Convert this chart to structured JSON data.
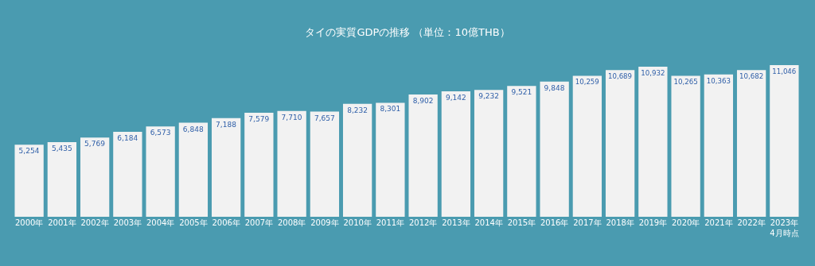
{
  "chart_data": {
    "type": "bar",
    "title": "タイの実質GDPの推移 （単位：10億THB）",
    "categories": [
      "2000年",
      "2001年",
      "2002年",
      "2003年",
      "2004年",
      "2005年",
      "2006年",
      "2007年",
      "2008年",
      "2009年",
      "2010年",
      "2011年",
      "2012年",
      "2013年",
      "2014年",
      "2015年",
      "2016年",
      "2017年",
      "2018年",
      "2019年",
      "2020年",
      "2021年",
      "2022年",
      "2023年\n4月時点"
    ],
    "values": [
      5254,
      5435,
      5769,
      6184,
      6573,
      6848,
      7188,
      7579,
      7710,
      7657,
      8232,
      8301,
      8902,
      9142,
      9232,
      9521,
      9848,
      10259,
      10689,
      10932,
      10265,
      10363,
      10682,
      11046
    ],
    "value_labels": [
      "5,254",
      "5,435",
      "5,769",
      "6,184",
      "6,573",
      "6,848",
      "7,188",
      "7,579",
      "7,710",
      "7,657",
      "8,232",
      "8,301",
      "8,902",
      "9,142",
      "9,232",
      "9,521",
      "9,848",
      "10,259",
      "10,689",
      "10,932",
      "10,265",
      "10,363",
      "10,682",
      "11,046"
    ],
    "color": "#f2f2f2",
    "grid": false,
    "tick_labels": "x"
  }
}
